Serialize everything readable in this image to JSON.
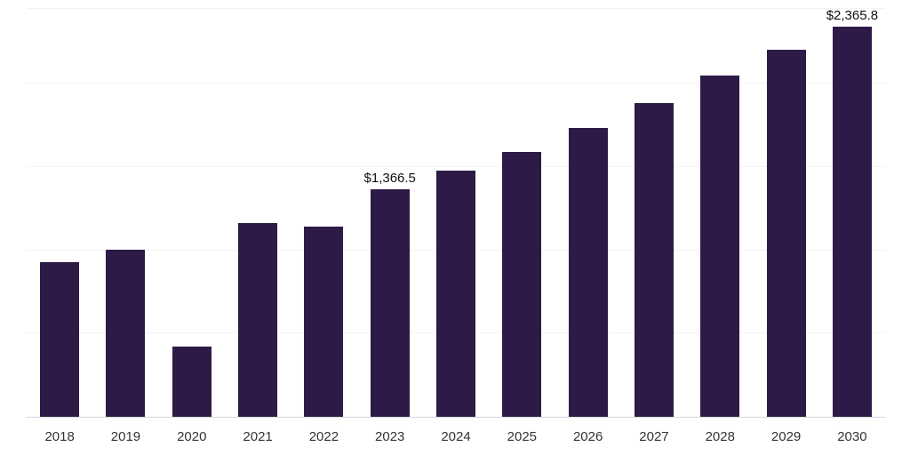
{
  "colors": {
    "bar": "#2e1a47",
    "gridline": "#f2f2f2",
    "axis_line": "#d8d8d8",
    "tick_label": "#333333",
    "value_label": "#111111"
  },
  "chart_data": {
    "type": "bar",
    "title": "",
    "xlabel": "",
    "ylabel": "",
    "categories": [
      "2018",
      "2019",
      "2020",
      "2021",
      "2022",
      "2023",
      "2024",
      "2025",
      "2026",
      "2027",
      "2028",
      "2029",
      "2030"
    ],
    "values": [
      930,
      1005,
      420,
      1165,
      1145,
      1366.5,
      1480,
      1590,
      1735,
      1885,
      2050,
      2205,
      2365.8
    ],
    "data_labels": [
      null,
      null,
      null,
      null,
      null,
      "$1,366.5",
      null,
      null,
      null,
      null,
      null,
      null,
      "$2,365.8"
    ],
    "ylim": [
      0,
      2450
    ],
    "gridline_values": [
      500,
      1000,
      1500,
      2000,
      2450
    ],
    "grid": true,
    "legend": false,
    "value_unit": "USD",
    "bar_color": "#2e1a47"
  }
}
